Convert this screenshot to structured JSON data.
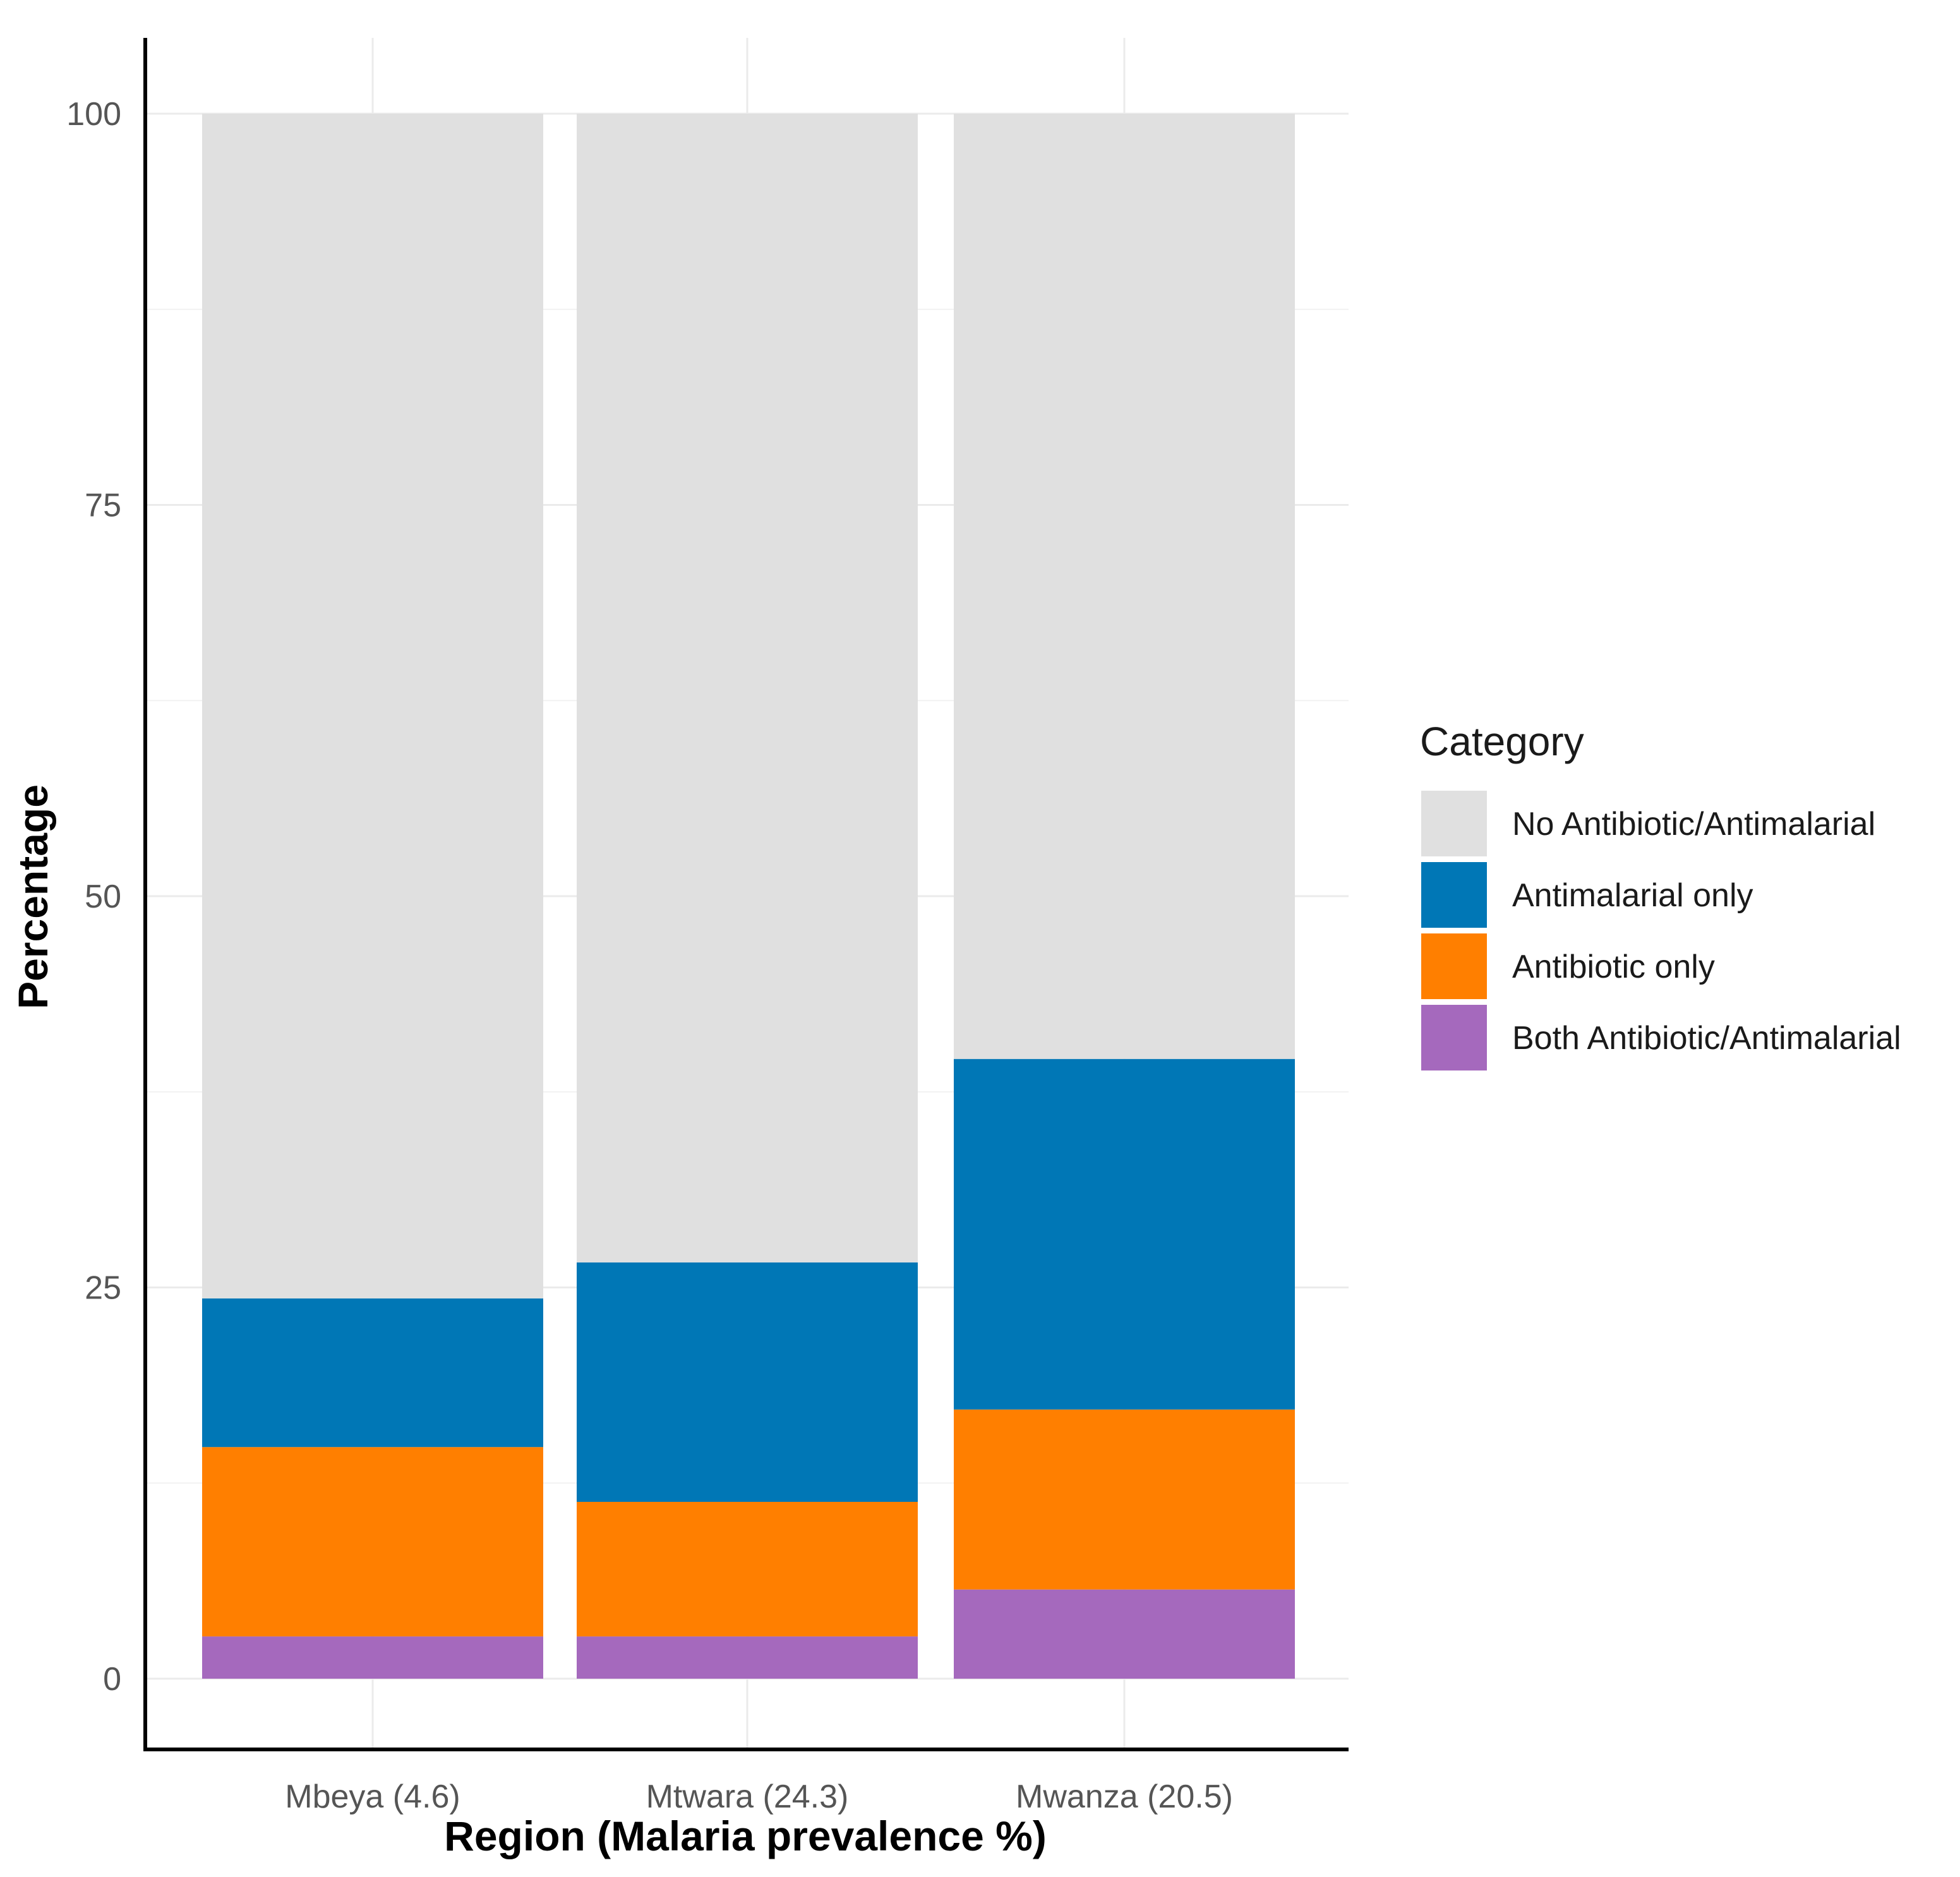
{
  "chart_data": {
    "type": "bar",
    "stacked": true,
    "title": "",
    "xlabel": "Region (Malaria prevalence %)",
    "ylabel": "Percentage",
    "ylim": [
      0,
      100
    ],
    "yticks": [
      "0",
      "25",
      "50",
      "75",
      "100"
    ],
    "categories": [
      "Mbeya (4.6)",
      "Mtwara (24.3)",
      "Mwanza (20.5)"
    ],
    "grid": true,
    "legend": {
      "title": "Category",
      "position": "right"
    },
    "series": [
      {
        "name": "Both Antibiotic/Antimalarial",
        "color": "#A569BD",
        "values": [
          2.7,
          2.7,
          5.7
        ]
      },
      {
        "name": "Antibiotic only",
        "color": "#FF7F00",
        "values": [
          12.1,
          8.6,
          11.5
        ]
      },
      {
        "name": "Antimalarial only",
        "color": "#0077B6",
        "values": [
          9.5,
          15.3,
          22.4
        ]
      },
      {
        "name": "No Antibiotic/Antimalarial",
        "color": "#E0E0E0",
        "values": [
          75.7,
          73.4,
          60.4
        ]
      }
    ],
    "legend_order": [
      "No Antibiotic/Antimalarial",
      "Antimalarial only",
      "Antibiotic only",
      "Both Antibiotic/Antimalarial"
    ]
  }
}
